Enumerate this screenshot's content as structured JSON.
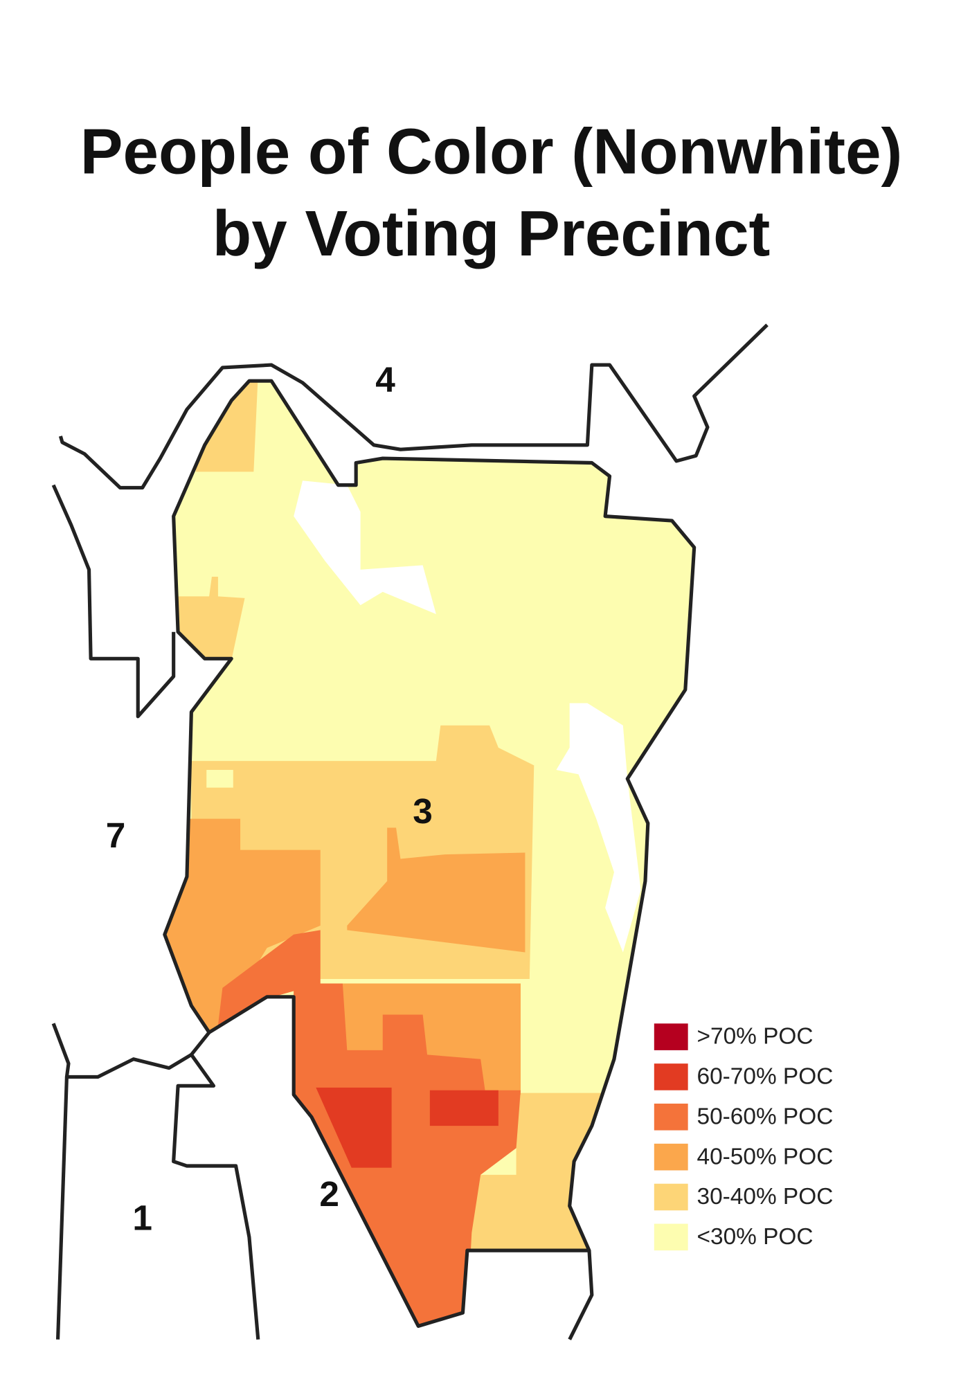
{
  "title": [
    "People of Color (Nonwhite)",
    "by Voting Precinct"
  ],
  "districts": [
    {
      "label": "4"
    },
    {
      "label": "3"
    },
    {
      "label": "7"
    },
    {
      "label": "2"
    },
    {
      "label": "1"
    }
  ],
  "legend": [
    {
      "label": ">70% POC",
      "color": "#b5001f"
    },
    {
      "label": "60-70% POC",
      "color": "#e23b22"
    },
    {
      "label": "50-60% POC",
      "color": "#f4733a"
    },
    {
      "label": "40-50% POC",
      "color": "#fba74c"
    },
    {
      "label": "30-40% POC",
      "color": "#fdd577"
    },
    {
      "label": "<30% POC",
      "color": "#fdfdb0"
    }
  ]
}
